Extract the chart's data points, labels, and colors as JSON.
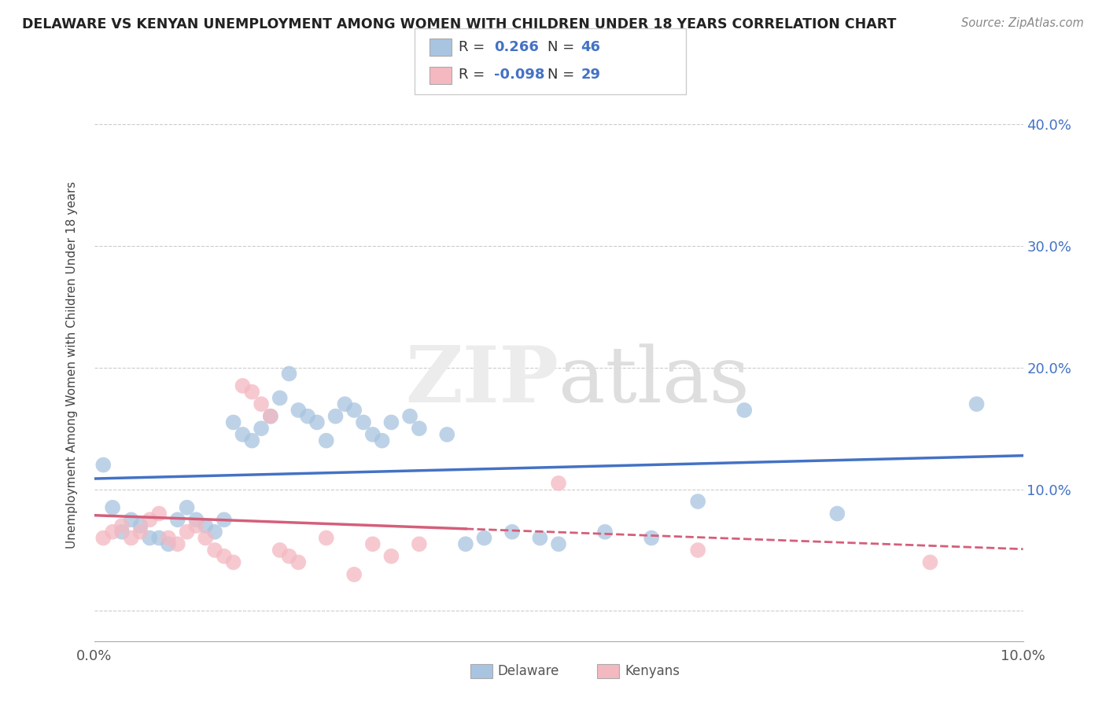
{
  "title": "DELAWARE VS KENYAN UNEMPLOYMENT AMONG WOMEN WITH CHILDREN UNDER 18 YEARS CORRELATION CHART",
  "source": "Source: ZipAtlas.com",
  "ylabel": "Unemployment Among Women with Children Under 18 years",
  "xlim": [
    0.0,
    0.1
  ],
  "ylim": [
    -0.025,
    0.43
  ],
  "yticks": [
    0.0,
    0.1,
    0.2,
    0.3,
    0.4
  ],
  "delaware_color": "#a8c4e0",
  "kenyan_color": "#f4b8c1",
  "delaware_line_color": "#4472c4",
  "kenyan_line_color": "#d45f7a",
  "background_color": "#ffffff",
  "delaware_x": [
    0.001,
    0.002,
    0.003,
    0.004,
    0.005,
    0.006,
    0.007,
    0.008,
    0.009,
    0.01,
    0.011,
    0.012,
    0.013,
    0.014,
    0.015,
    0.016,
    0.017,
    0.018,
    0.019,
    0.02,
    0.021,
    0.022,
    0.023,
    0.024,
    0.025,
    0.026,
    0.027,
    0.028,
    0.029,
    0.03,
    0.031,
    0.032,
    0.034,
    0.035,
    0.038,
    0.04,
    0.042,
    0.045,
    0.048,
    0.05,
    0.055,
    0.06,
    0.065,
    0.07,
    0.08,
    0.095
  ],
  "delaware_y": [
    0.12,
    0.085,
    0.065,
    0.075,
    0.07,
    0.06,
    0.06,
    0.055,
    0.075,
    0.085,
    0.075,
    0.07,
    0.065,
    0.075,
    0.155,
    0.145,
    0.14,
    0.15,
    0.16,
    0.175,
    0.195,
    0.165,
    0.16,
    0.155,
    0.14,
    0.16,
    0.17,
    0.165,
    0.155,
    0.145,
    0.14,
    0.155,
    0.16,
    0.15,
    0.145,
    0.055,
    0.06,
    0.065,
    0.06,
    0.055,
    0.065,
    0.06,
    0.09,
    0.165,
    0.08,
    0.17
  ],
  "kenyan_x": [
    0.001,
    0.002,
    0.003,
    0.004,
    0.005,
    0.006,
    0.007,
    0.008,
    0.009,
    0.01,
    0.011,
    0.012,
    0.013,
    0.014,
    0.015,
    0.016,
    0.017,
    0.018,
    0.019,
    0.02,
    0.021,
    0.022,
    0.025,
    0.028,
    0.03,
    0.032,
    0.035,
    0.05,
    0.065,
    0.09
  ],
  "kenyan_y": [
    0.06,
    0.065,
    0.07,
    0.06,
    0.065,
    0.075,
    0.08,
    0.06,
    0.055,
    0.065,
    0.07,
    0.06,
    0.05,
    0.045,
    0.04,
    0.185,
    0.18,
    0.17,
    0.16,
    0.05,
    0.045,
    0.04,
    0.06,
    0.03,
    0.055,
    0.045,
    0.055,
    0.105,
    0.05,
    0.04
  ]
}
